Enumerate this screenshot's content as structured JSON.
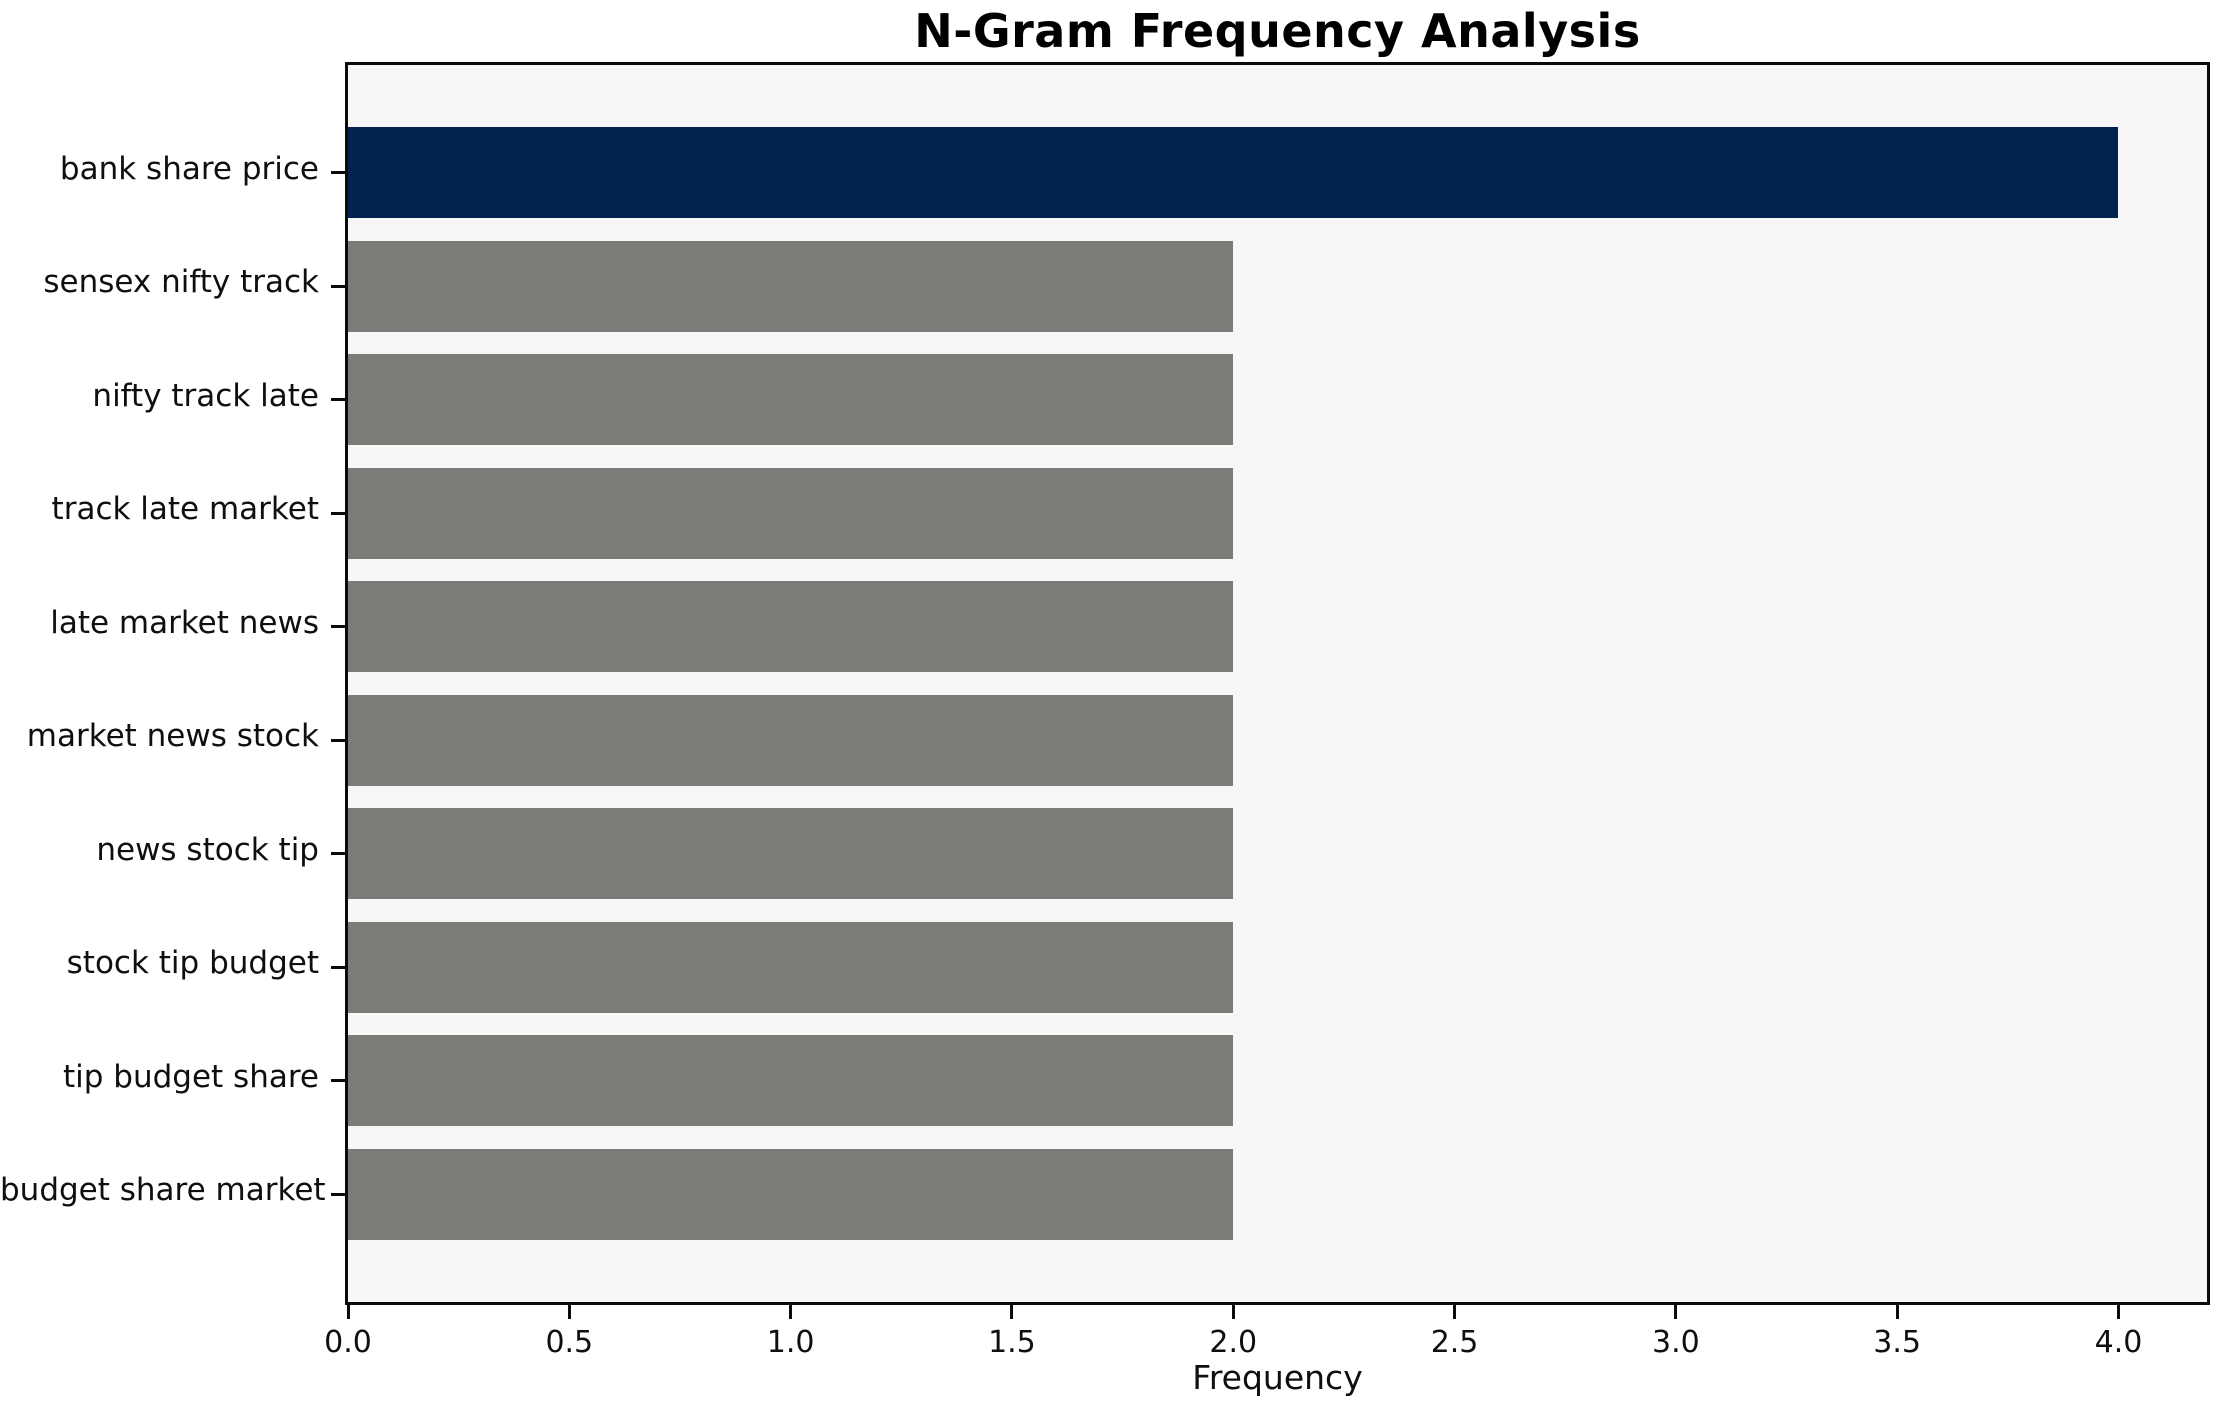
{
  "chart_data": {
    "type": "bar",
    "orientation": "horizontal",
    "title": "N-Gram Frequency Analysis",
    "xlabel": "Frequency",
    "ylabel": "",
    "categories": [
      "bank share price",
      "sensex nifty track",
      "nifty track late",
      "track late market",
      "late market news",
      "market news stock",
      "news stock tip",
      "stock tip budget",
      "tip budget share",
      "budget share market"
    ],
    "values": [
      4,
      2,
      2,
      2,
      2,
      2,
      2,
      2,
      2,
      2
    ],
    "xlim": [
      0,
      4.2
    ],
    "xticks": [
      0.0,
      0.5,
      1.0,
      1.5,
      2.0,
      2.5,
      3.0,
      3.5,
      4.0
    ],
    "grid": false,
    "legend": "none",
    "highlight_index": 0,
    "colors": {
      "highlight_bar": "#022350",
      "default_bar": "#7b7b77",
      "plot_background": "#f7f7f7",
      "figure_background": "#ffffff",
      "axis_line": "#0a0a0a",
      "text": "#0f0f0f"
    }
  }
}
